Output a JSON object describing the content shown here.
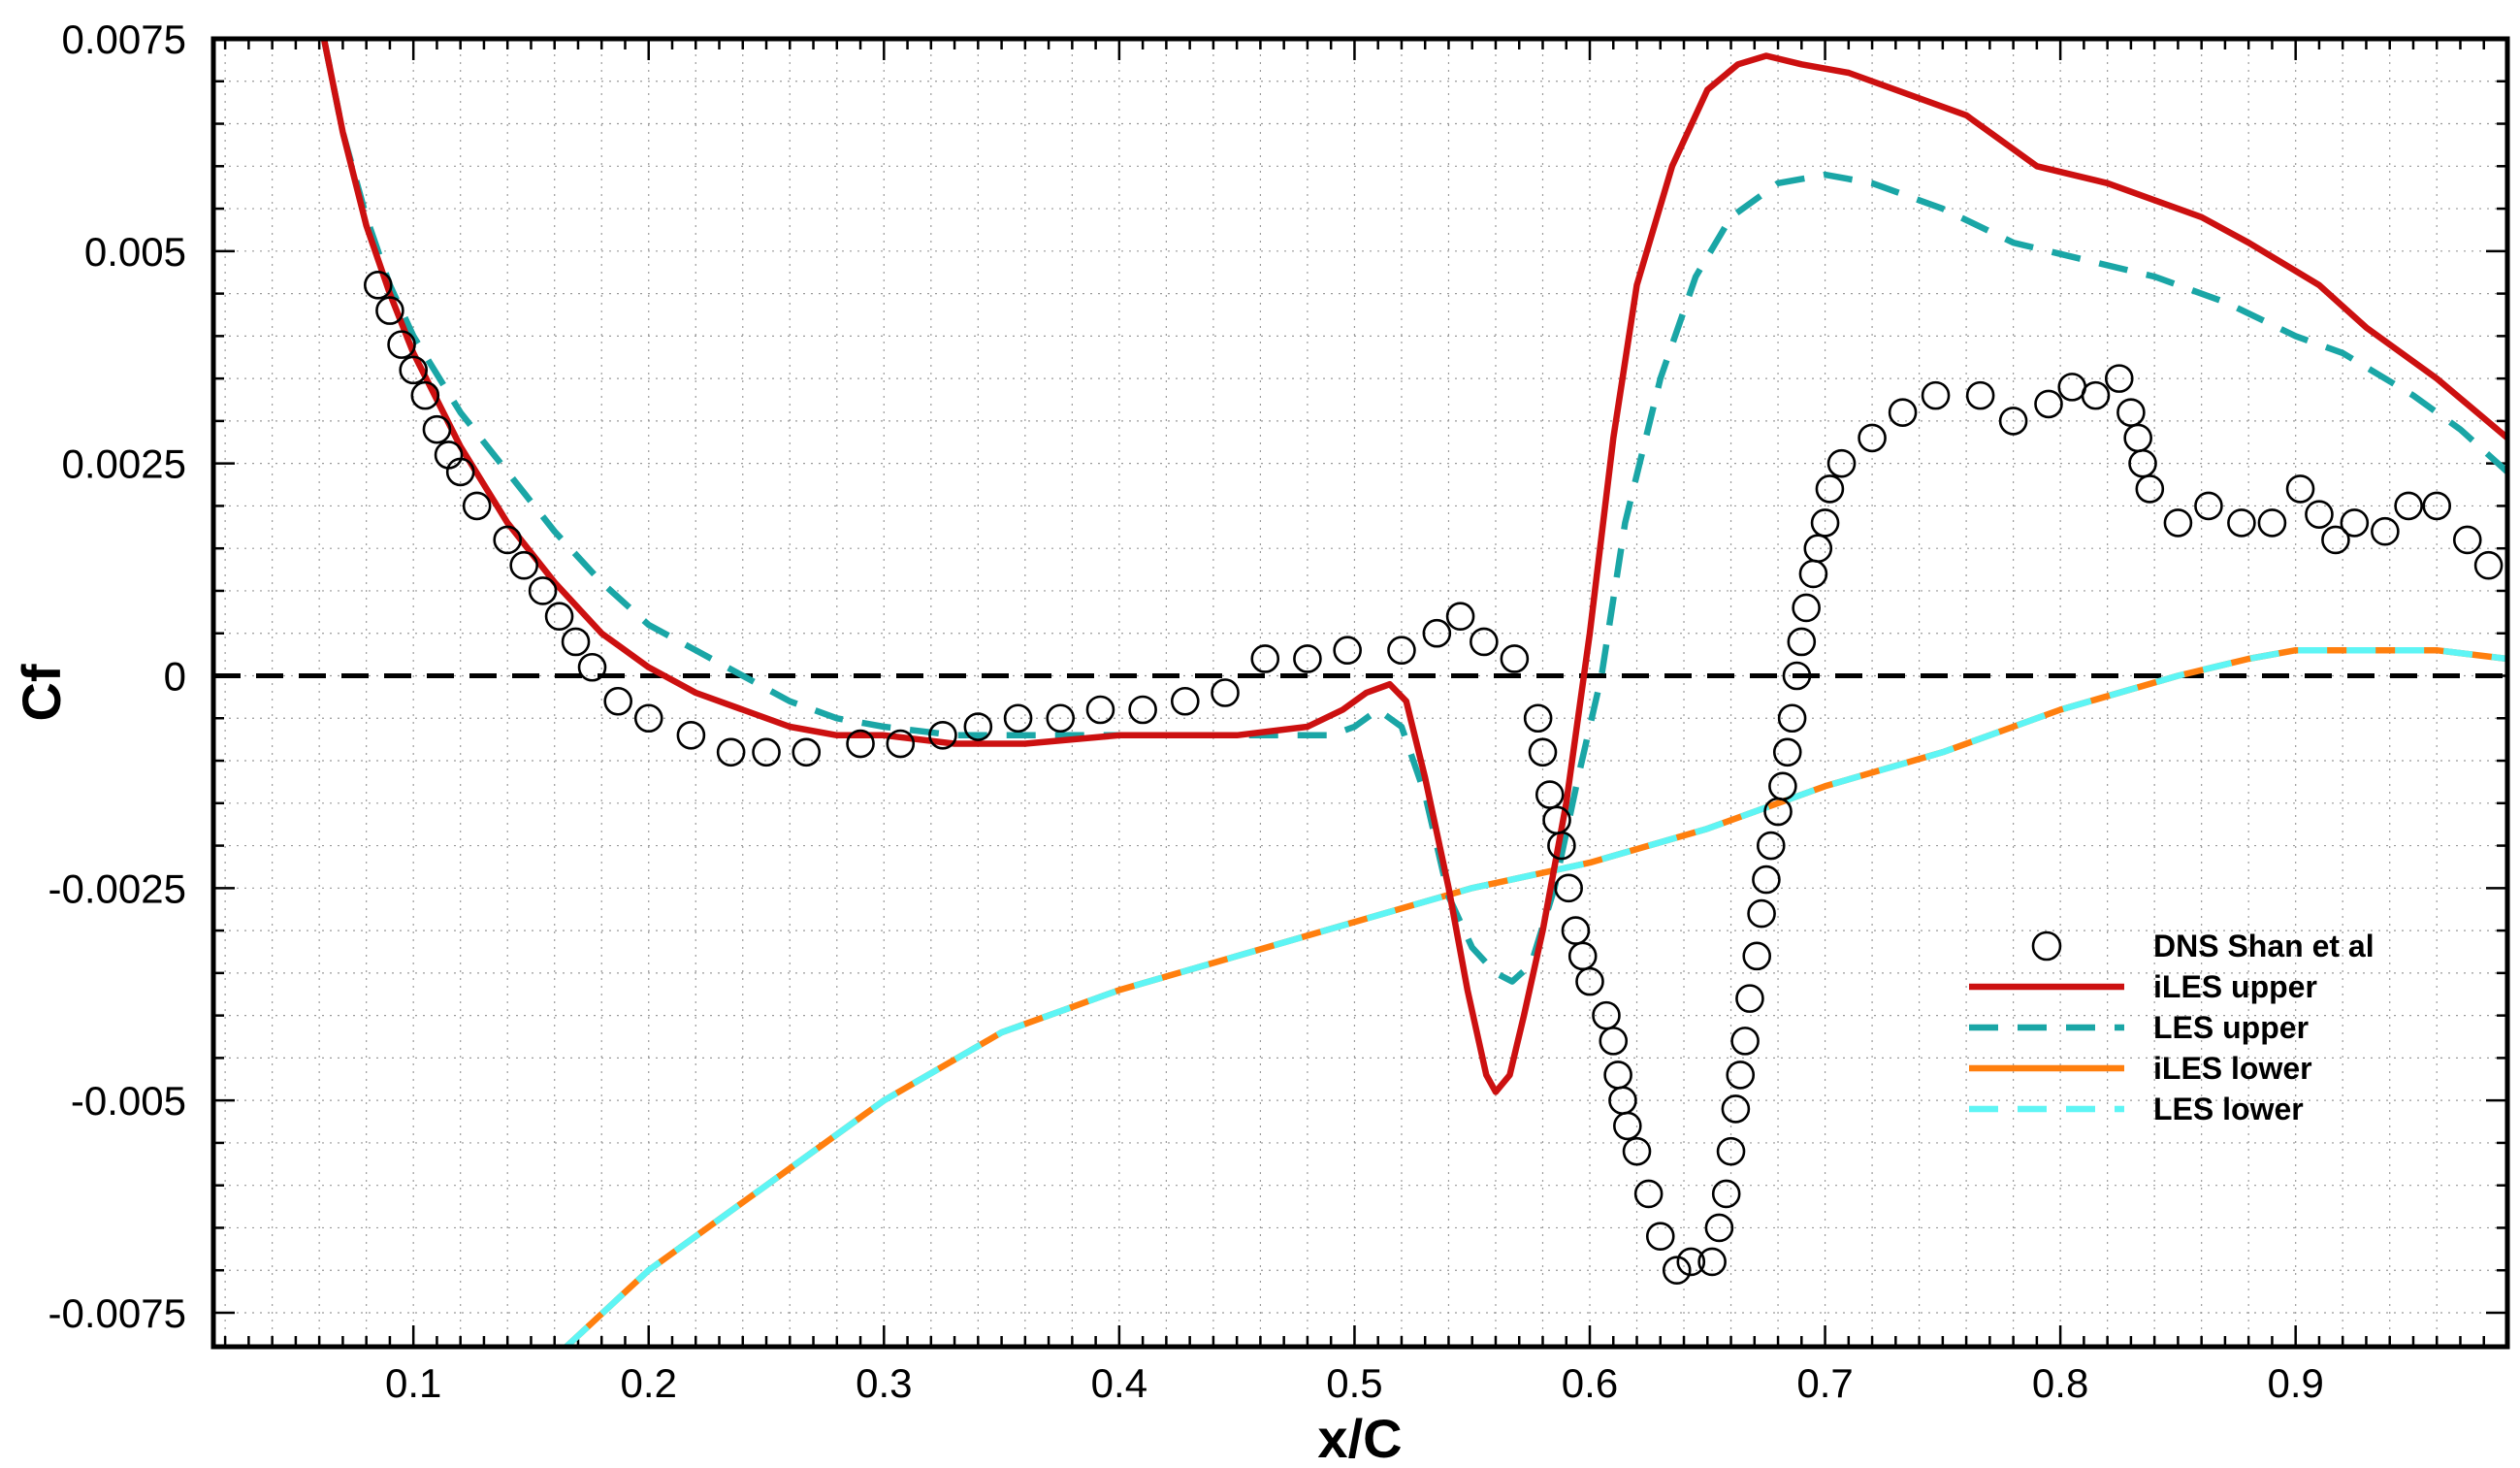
{
  "chart_data": {
    "type": "line",
    "xlabel": "x/C",
    "ylabel": "Cf",
    "xlim": [
      0.015,
      0.99
    ],
    "ylim": [
      -0.0079,
      0.0075
    ],
    "x_ticks": [
      0.1,
      0.2,
      0.3,
      0.4,
      0.5,
      0.6,
      0.7,
      0.8,
      0.9
    ],
    "x_tick_labels": [
      "0.1",
      "0.2",
      "0.3",
      "0.4",
      "0.5",
      "0.6",
      "0.7",
      "0.8",
      "0.9"
    ],
    "y_ticks": [
      0.0075,
      0.005,
      0.0025,
      0,
      -0.0025,
      -0.005,
      -0.0075
    ],
    "y_tick_labels": [
      "0.0075",
      "0.005",
      "0.0025",
      "0",
      "-0.0025",
      "-0.005",
      "-0.0075"
    ],
    "grid": true,
    "legend_position": "lower-right",
    "zero_line": {
      "y": 0,
      "style": "dashed",
      "color": "#000000"
    },
    "series": [
      {
        "name": "DNS Shan et al",
        "style": "circles",
        "color": "#000000",
        "points": [
          [
            0.085,
            0.0046
          ],
          [
            0.09,
            0.0043
          ],
          [
            0.095,
            0.0039
          ],
          [
            0.1,
            0.0036
          ],
          [
            0.105,
            0.0033
          ],
          [
            0.11,
            0.0029
          ],
          [
            0.115,
            0.0026
          ],
          [
            0.12,
            0.0024
          ],
          [
            0.127,
            0.002
          ],
          [
            0.14,
            0.0016
          ],
          [
            0.147,
            0.0013
          ],
          [
            0.155,
            0.001
          ],
          [
            0.162,
            0.0007
          ],
          [
            0.169,
            0.0004
          ],
          [
            0.176,
            0.0001
          ],
          [
            0.187,
            -0.0003
          ],
          [
            0.2,
            -0.0005
          ],
          [
            0.218,
            -0.0007
          ],
          [
            0.235,
            -0.0009
          ],
          [
            0.25,
            -0.0009
          ],
          [
            0.267,
            -0.0009
          ],
          [
            0.29,
            -0.0008
          ],
          [
            0.307,
            -0.0008
          ],
          [
            0.325,
            -0.0007
          ],
          [
            0.34,
            -0.0006
          ],
          [
            0.357,
            -0.0005
          ],
          [
            0.375,
            -0.0005
          ],
          [
            0.392,
            -0.0004
          ],
          [
            0.41,
            -0.0004
          ],
          [
            0.428,
            -0.0003
          ],
          [
            0.445,
            -0.0002
          ],
          [
            0.462,
            0.0002
          ],
          [
            0.48,
            0.0002
          ],
          [
            0.497,
            0.0003
          ],
          [
            0.52,
            0.0003
          ],
          [
            0.535,
            0.0005
          ],
          [
            0.545,
            0.0007
          ],
          [
            0.555,
            0.0004
          ],
          [
            0.568,
            0.0002
          ],
          [
            0.578,
            -0.0005
          ],
          [
            0.58,
            -0.0009
          ],
          [
            0.583,
            -0.0014
          ],
          [
            0.586,
            -0.0017
          ],
          [
            0.588,
            -0.002
          ],
          [
            0.591,
            -0.0025
          ],
          [
            0.594,
            -0.003
          ],
          [
            0.597,
            -0.0033
          ],
          [
            0.6,
            -0.0036
          ],
          [
            0.607,
            -0.004
          ],
          [
            0.61,
            -0.0043
          ],
          [
            0.612,
            -0.0047
          ],
          [
            0.614,
            -0.005
          ],
          [
            0.616,
            -0.0053
          ],
          [
            0.62,
            -0.0056
          ],
          [
            0.625,
            -0.0061
          ],
          [
            0.63,
            -0.0066
          ],
          [
            0.637,
            -0.007
          ],
          [
            0.643,
            -0.0069
          ],
          [
            0.652,
            -0.0069
          ],
          [
            0.655,
            -0.0065
          ],
          [
            0.658,
            -0.0061
          ],
          [
            0.66,
            -0.0056
          ],
          [
            0.662,
            -0.0051
          ],
          [
            0.664,
            -0.0047
          ],
          [
            0.666,
            -0.0043
          ],
          [
            0.668,
            -0.0038
          ],
          [
            0.671,
            -0.0033
          ],
          [
            0.673,
            -0.0028
          ],
          [
            0.675,
            -0.0024
          ],
          [
            0.677,
            -0.002
          ],
          [
            0.68,
            -0.0016
          ],
          [
            0.682,
            -0.0013
          ],
          [
            0.684,
            -0.0009
          ],
          [
            0.686,
            -0.0005
          ],
          [
            0.688,
            0
          ],
          [
            0.69,
            0.0004
          ],
          [
            0.692,
            0.0008
          ],
          [
            0.695,
            0.0012
          ],
          [
            0.697,
            0.0015
          ],
          [
            0.7,
            0.0018
          ],
          [
            0.702,
            0.0022
          ],
          [
            0.707,
            0.0025
          ],
          [
            0.72,
            0.0028
          ],
          [
            0.733,
            0.0031
          ],
          [
            0.747,
            0.0033
          ],
          [
            0.766,
            0.0033
          ],
          [
            0.78,
            0.003
          ],
          [
            0.795,
            0.0032
          ],
          [
            0.805,
            0.0034
          ],
          [
            0.815,
            0.0033
          ],
          [
            0.825,
            0.0035
          ],
          [
            0.83,
            0.0031
          ],
          [
            0.833,
            0.0028
          ],
          [
            0.835,
            0.0025
          ],
          [
            0.838,
            0.0022
          ],
          [
            0.85,
            0.0018
          ],
          [
            0.863,
            0.002
          ],
          [
            0.877,
            0.0018
          ],
          [
            0.89,
            0.0018
          ],
          [
            0.902,
            0.0022
          ],
          [
            0.91,
            0.0019
          ],
          [
            0.917,
            0.0016
          ],
          [
            0.925,
            0.0018
          ],
          [
            0.938,
            0.0017
          ],
          [
            0.948,
            0.002
          ],
          [
            0.96,
            0.002
          ],
          [
            0.973,
            0.0016
          ],
          [
            0.982,
            0.0013
          ]
        ]
      },
      {
        "name": "iLES upper",
        "style": "solid",
        "color": "#cc1010",
        "points": [
          [
            0.062,
            0.0075
          ],
          [
            0.07,
            0.0064
          ],
          [
            0.08,
            0.0053
          ],
          [
            0.09,
            0.0045
          ],
          [
            0.1,
            0.0038
          ],
          [
            0.12,
            0.0027
          ],
          [
            0.14,
            0.0018
          ],
          [
            0.16,
            0.0011
          ],
          [
            0.18,
            0.0005
          ],
          [
            0.2,
            0.0001
          ],
          [
            0.22,
            -0.0002
          ],
          [
            0.24,
            -0.0004
          ],
          [
            0.26,
            -0.0006
          ],
          [
            0.28,
            -0.0007
          ],
          [
            0.3,
            -0.0007
          ],
          [
            0.33,
            -0.0008
          ],
          [
            0.36,
            -0.0008
          ],
          [
            0.4,
            -0.0007
          ],
          [
            0.45,
            -0.0007
          ],
          [
            0.48,
            -0.0006
          ],
          [
            0.495,
            -0.0004
          ],
          [
            0.505,
            -0.0002
          ],
          [
            0.515,
            -0.0001
          ],
          [
            0.522,
            -0.0003
          ],
          [
            0.53,
            -0.0012
          ],
          [
            0.54,
            -0.0025
          ],
          [
            0.548,
            -0.0037
          ],
          [
            0.556,
            -0.0047
          ],
          [
            0.56,
            -0.0049
          ],
          [
            0.566,
            -0.0047
          ],
          [
            0.572,
            -0.004
          ],
          [
            0.58,
            -0.003
          ],
          [
            0.59,
            -0.0015
          ],
          [
            0.6,
            0.0005
          ],
          [
            0.61,
            0.0028
          ],
          [
            0.62,
            0.0046
          ],
          [
            0.635,
            0.006
          ],
          [
            0.65,
            0.0069
          ],
          [
            0.663,
            0.0072
          ],
          [
            0.675,
            0.0073
          ],
          [
            0.69,
            0.0072
          ],
          [
            0.71,
            0.0071
          ],
          [
            0.74,
            0.0068
          ],
          [
            0.76,
            0.0066
          ],
          [
            0.79,
            0.006
          ],
          [
            0.82,
            0.0058
          ],
          [
            0.86,
            0.0054
          ],
          [
            0.88,
            0.0051
          ],
          [
            0.91,
            0.0046
          ],
          [
            0.93,
            0.0041
          ],
          [
            0.96,
            0.0035
          ],
          [
            0.99,
            0.0028
          ]
        ]
      },
      {
        "name": "LES upper",
        "style": "dashed",
        "color": "#1aa6a6",
        "points": [
          [
            0.062,
            0.0075
          ],
          [
            0.07,
            0.0064
          ],
          [
            0.08,
            0.0054
          ],
          [
            0.09,
            0.0046
          ],
          [
            0.1,
            0.004
          ],
          [
            0.12,
            0.0031
          ],
          [
            0.14,
            0.0024
          ],
          [
            0.16,
            0.0017
          ],
          [
            0.18,
            0.0011
          ],
          [
            0.2,
            0.0006
          ],
          [
            0.22,
            0.0003
          ],
          [
            0.24,
            0
          ],
          [
            0.26,
            -0.0003
          ],
          [
            0.28,
            -0.0005
          ],
          [
            0.3,
            -0.0006
          ],
          [
            0.33,
            -0.0007
          ],
          [
            0.36,
            -0.0007
          ],
          [
            0.4,
            -0.0007
          ],
          [
            0.45,
            -0.0007
          ],
          [
            0.49,
            -0.0007
          ],
          [
            0.5,
            -0.0006
          ],
          [
            0.51,
            -0.0004
          ],
          [
            0.52,
            -0.0006
          ],
          [
            0.53,
            -0.0014
          ],
          [
            0.54,
            -0.0026
          ],
          [
            0.55,
            -0.0032
          ],
          [
            0.56,
            -0.0035
          ],
          [
            0.567,
            -0.0036
          ],
          [
            0.575,
            -0.0034
          ],
          [
            0.585,
            -0.0025
          ],
          [
            0.595,
            -0.0012
          ],
          [
            0.605,
            0
          ],
          [
            0.615,
            0.0018
          ],
          [
            0.63,
            0.0035
          ],
          [
            0.645,
            0.0047
          ],
          [
            0.66,
            0.0054
          ],
          [
            0.68,
            0.0058
          ],
          [
            0.7,
            0.0059
          ],
          [
            0.72,
            0.0058
          ],
          [
            0.75,
            0.0055
          ],
          [
            0.78,
            0.0051
          ],
          [
            0.81,
            0.0049
          ],
          [
            0.84,
            0.0047
          ],
          [
            0.87,
            0.0044
          ],
          [
            0.9,
            0.004
          ],
          [
            0.92,
            0.0038
          ],
          [
            0.95,
            0.0033
          ],
          [
            0.97,
            0.0029
          ],
          [
            0.99,
            0.0024
          ]
        ]
      },
      {
        "name": "iLES lower",
        "style": "solid",
        "color": "#ff7f0e",
        "points": [
          [
            0.165,
            -0.0079
          ],
          [
            0.2,
            -0.007
          ],
          [
            0.25,
            -0.006
          ],
          [
            0.3,
            -0.005
          ],
          [
            0.35,
            -0.0042
          ],
          [
            0.4,
            -0.0037
          ],
          [
            0.45,
            -0.0033
          ],
          [
            0.5,
            -0.0029
          ],
          [
            0.55,
            -0.0025
          ],
          [
            0.6,
            -0.0022
          ],
          [
            0.65,
            -0.0018
          ],
          [
            0.7,
            -0.0013
          ],
          [
            0.75,
            -0.0009
          ],
          [
            0.8,
            -0.0004
          ],
          [
            0.85,
            0
          ],
          [
            0.88,
            0.0002
          ],
          [
            0.9,
            0.0003
          ],
          [
            0.93,
            0.0003
          ],
          [
            0.96,
            0.0003
          ],
          [
            0.99,
            0.0002
          ]
        ]
      },
      {
        "name": "LES lower",
        "style": "dashed",
        "color": "#5ef5f5",
        "points": [
          [
            0.165,
            -0.0079
          ],
          [
            0.2,
            -0.007
          ],
          [
            0.25,
            -0.006
          ],
          [
            0.3,
            -0.005
          ],
          [
            0.35,
            -0.0042
          ],
          [
            0.4,
            -0.0037
          ],
          [
            0.45,
            -0.0033
          ],
          [
            0.5,
            -0.0029
          ],
          [
            0.55,
            -0.0025
          ],
          [
            0.6,
            -0.0022
          ],
          [
            0.65,
            -0.0018
          ],
          [
            0.7,
            -0.0013
          ],
          [
            0.75,
            -0.0009
          ],
          [
            0.8,
            -0.0004
          ],
          [
            0.85,
            0
          ],
          [
            0.88,
            0.0002
          ],
          [
            0.9,
            0.0003
          ],
          [
            0.93,
            0.0003
          ],
          [
            0.96,
            0.0003
          ],
          [
            0.99,
            0.0002
          ]
        ]
      }
    ]
  }
}
